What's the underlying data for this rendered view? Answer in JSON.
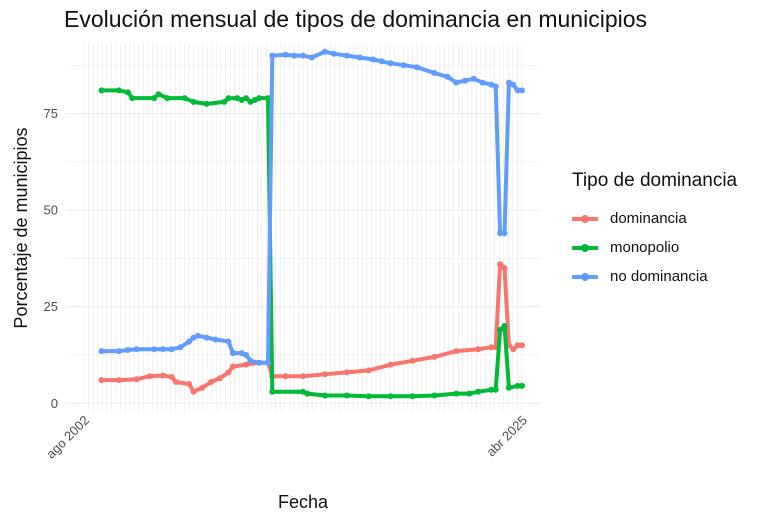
{
  "chart_data": {
    "type": "line",
    "title": "Evolución mensual de tipos de dominancia en municipios",
    "xlabel": "Fecha",
    "ylabel": "Porcentaje de municipios",
    "ylim": [
      -2,
      93
    ],
    "y_ticks": [
      0,
      25,
      50,
      75
    ],
    "x_tick_labels": [
      "ago 2002",
      "abr 2025"
    ],
    "x_range": [
      0,
      100
    ],
    "grid": true,
    "legend": {
      "title": "Tipo de dominancia",
      "position": "right"
    },
    "series": [
      {
        "name": "dominancia",
        "color": "#F8766D",
        "points": [
          [
            4,
            6
          ],
          [
            8,
            6
          ],
          [
            12,
            6.2
          ],
          [
            15,
            7
          ],
          [
            18,
            7.2
          ],
          [
            20,
            6.8
          ],
          [
            21,
            5.5
          ],
          [
            24,
            5
          ],
          [
            25,
            3
          ],
          [
            27,
            4
          ],
          [
            29,
            5.5
          ],
          [
            31,
            6.5
          ],
          [
            33,
            8
          ],
          [
            34,
            9.5
          ],
          [
            37,
            10
          ],
          [
            40,
            10.5
          ],
          [
            42,
            10.5
          ],
          [
            43,
            7
          ],
          [
            46,
            7
          ],
          [
            50,
            7
          ],
          [
            55,
            7.5
          ],
          [
            60,
            8
          ],
          [
            65,
            8.5
          ],
          [
            70,
            10
          ],
          [
            75,
            11
          ],
          [
            80,
            12
          ],
          [
            85,
            13.5
          ],
          [
            90,
            14
          ],
          [
            93,
            14.5
          ],
          [
            94,
            14.5
          ],
          [
            95,
            36
          ],
          [
            96,
            35
          ],
          [
            97,
            15
          ],
          [
            98,
            14
          ],
          [
            99,
            15
          ],
          [
            100,
            15
          ]
        ]
      },
      {
        "name": "monopolio",
        "color": "#00BA38",
        "points": [
          [
            4,
            81
          ],
          [
            8,
            81
          ],
          [
            10,
            80.5
          ],
          [
            11,
            79
          ],
          [
            16,
            79
          ],
          [
            17,
            80
          ],
          [
            19,
            79
          ],
          [
            23,
            79
          ],
          [
            25,
            78
          ],
          [
            28,
            77.5
          ],
          [
            32,
            78
          ],
          [
            33,
            79
          ],
          [
            35,
            79
          ],
          [
            36,
            78.5
          ],
          [
            37,
            79
          ],
          [
            38,
            78
          ],
          [
            39,
            78.5
          ],
          [
            40,
            79
          ],
          [
            42,
            79
          ],
          [
            43,
            3
          ],
          [
            50,
            3
          ],
          [
            51,
            2.5
          ],
          [
            55,
            2
          ],
          [
            60,
            2
          ],
          [
            65,
            1.8
          ],
          [
            70,
            1.8
          ],
          [
            75,
            1.8
          ],
          [
            80,
            2
          ],
          [
            85,
            2.5
          ],
          [
            88,
            2.5
          ],
          [
            90,
            3
          ],
          [
            93,
            3.5
          ],
          [
            94,
            3.5
          ],
          [
            95,
            19
          ],
          [
            96,
            20
          ],
          [
            97,
            4
          ],
          [
            99,
            4.5
          ],
          [
            100,
            4.5
          ]
        ]
      },
      {
        "name": "no dominancia",
        "color": "#619CFF",
        "points": [
          [
            4,
            13.5
          ],
          [
            8,
            13.5
          ],
          [
            10,
            13.8
          ],
          [
            12,
            14
          ],
          [
            16,
            14
          ],
          [
            18,
            14
          ],
          [
            20,
            14
          ],
          [
            22,
            14.5
          ],
          [
            24,
            16
          ],
          [
            25,
            17
          ],
          [
            26,
            17.5
          ],
          [
            28,
            17
          ],
          [
            30,
            16.5
          ],
          [
            33,
            16
          ],
          [
            34,
            13
          ],
          [
            36,
            13
          ],
          [
            37,
            12.5
          ],
          [
            38,
            11
          ],
          [
            40,
            10.5
          ],
          [
            42,
            10.5
          ],
          [
            43,
            90
          ],
          [
            46,
            90.2
          ],
          [
            48,
            90
          ],
          [
            50,
            90
          ],
          [
            52,
            89.5
          ],
          [
            55,
            91
          ],
          [
            57,
            90.5
          ],
          [
            60,
            90
          ],
          [
            63,
            89.5
          ],
          [
            66,
            89
          ],
          [
            68,
            88.5
          ],
          [
            70,
            88
          ],
          [
            73,
            87.5
          ],
          [
            76,
            87
          ],
          [
            80,
            85.5
          ],
          [
            83,
            84.5
          ],
          [
            85,
            83
          ],
          [
            87,
            83.5
          ],
          [
            89,
            84
          ],
          [
            91,
            83
          ],
          [
            93,
            82.5
          ],
          [
            94,
            82
          ],
          [
            95,
            44
          ],
          [
            96,
            44
          ],
          [
            97,
            83
          ],
          [
            98,
            82.5
          ],
          [
            99,
            81
          ],
          [
            100,
            81
          ]
        ]
      }
    ]
  }
}
